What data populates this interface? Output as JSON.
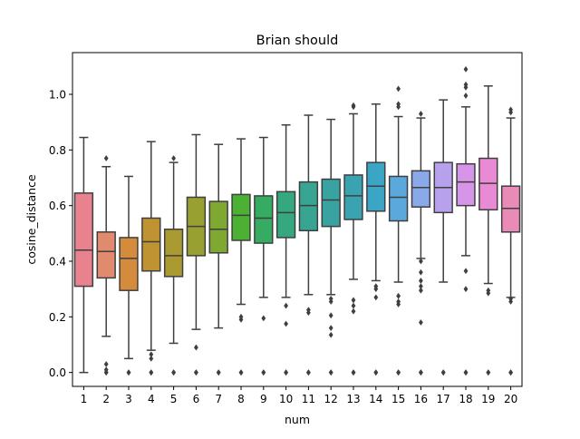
{
  "chart_data": {
    "type": "box",
    "title": "Brian should",
    "xlabel": "num",
    "ylabel": "cosine_distance",
    "ylim": [
      -0.05,
      1.15
    ],
    "yticks": [
      0.0,
      0.2,
      0.4,
      0.6,
      0.8,
      1.0
    ],
    "ytick_labels": [
      "0.0",
      "0.2",
      "0.4",
      "0.6",
      "0.8",
      "1.0"
    ],
    "grid": false,
    "legend": "none",
    "categories": [
      "1",
      "2",
      "3",
      "4",
      "5",
      "6",
      "7",
      "8",
      "9",
      "10",
      "11",
      "12",
      "13",
      "14",
      "15",
      "16",
      "17",
      "18",
      "19",
      "20"
    ],
    "boxes": [
      {
        "category": "1",
        "color": "#e8828f",
        "whisker_low": 0.0,
        "q1": 0.31,
        "median": 0.44,
        "q3": 0.645,
        "whisker_high": 0.845,
        "outliers": []
      },
      {
        "category": "2",
        "color": "#e08a6e",
        "whisker_low": 0.13,
        "q1": 0.34,
        "median": 0.435,
        "q3": 0.505,
        "whisker_high": 0.74,
        "outliers": [
          0.0,
          0.0,
          0.01,
          0.03,
          0.77
        ]
      },
      {
        "category": "3",
        "color": "#d58b3c",
        "whisker_low": 0.05,
        "q1": 0.295,
        "median": 0.41,
        "q3": 0.485,
        "whisker_high": 0.705,
        "outliers": [
          0.0,
          0.0
        ]
      },
      {
        "category": "4",
        "color": "#bf9232",
        "whisker_low": 0.08,
        "q1": 0.365,
        "median": 0.47,
        "q3": 0.555,
        "whisker_high": 0.83,
        "outliers": [
          0.0,
          0.0,
          0.05,
          0.065
        ]
      },
      {
        "category": "5",
        "color": "#ab9a32",
        "whisker_low": 0.105,
        "q1": 0.345,
        "median": 0.42,
        "q3": 0.515,
        "whisker_high": 0.755,
        "outliers": [
          0.0,
          0.0,
          0.77
        ]
      },
      {
        "category": "6",
        "color": "#98a032",
        "whisker_low": 0.155,
        "q1": 0.42,
        "median": 0.525,
        "q3": 0.63,
        "whisker_high": 0.855,
        "outliers": [
          0.0,
          0.0,
          0.09
        ]
      },
      {
        "category": "7",
        "color": "#7ea832",
        "whisker_low": 0.16,
        "q1": 0.43,
        "median": 0.515,
        "q3": 0.615,
        "whisker_high": 0.82,
        "outliers": [
          0.0,
          0.0
        ]
      },
      {
        "category": "8",
        "color": "#4cb033",
        "whisker_low": 0.245,
        "q1": 0.475,
        "median": 0.565,
        "q3": 0.64,
        "whisker_high": 0.84,
        "outliers": [
          0.0,
          0.0,
          0.19,
          0.2
        ]
      },
      {
        "category": "9",
        "color": "#35ac62",
        "whisker_low": 0.27,
        "q1": 0.465,
        "median": 0.555,
        "q3": 0.635,
        "whisker_high": 0.845,
        "outliers": [
          0.0,
          0.0,
          0.195
        ]
      },
      {
        "category": "10",
        "color": "#36a87f",
        "whisker_low": 0.27,
        "q1": 0.485,
        "median": 0.575,
        "q3": 0.65,
        "whisker_high": 0.89,
        "outliers": [
          0.0,
          0.0,
          0.175,
          0.24
        ]
      },
      {
        "category": "11",
        "color": "#37a591",
        "whisker_low": 0.28,
        "q1": 0.51,
        "median": 0.6,
        "q3": 0.685,
        "whisker_high": 0.925,
        "outliers": [
          0.0,
          0.0,
          0.215,
          0.225
        ]
      },
      {
        "category": "12",
        "color": "#38a3a0",
        "whisker_low": 0.28,
        "q1": 0.525,
        "median": 0.62,
        "q3": 0.695,
        "whisker_high": 0.91,
        "outliers": [
          0.0,
          0.0,
          0.135,
          0.16,
          0.205,
          0.255,
          0.265
        ]
      },
      {
        "category": "13",
        "color": "#39a3b1",
        "whisker_low": 0.335,
        "q1": 0.55,
        "median": 0.635,
        "q3": 0.71,
        "whisker_high": 0.93,
        "outliers": [
          0.0,
          0.0,
          0.22,
          0.24,
          0.26,
          0.955,
          0.96
        ]
      },
      {
        "category": "14",
        "color": "#3aa5c5",
        "whisker_low": 0.33,
        "q1": 0.58,
        "median": 0.67,
        "q3": 0.755,
        "whisker_high": 0.965,
        "outliers": [
          0.0,
          0.0,
          0.27,
          0.3,
          0.31
        ]
      },
      {
        "category": "15",
        "color": "#5ba9dc",
        "whisker_low": 0.325,
        "q1": 0.545,
        "median": 0.63,
        "q3": 0.705,
        "whisker_high": 0.92,
        "outliers": [
          0.0,
          0.0,
          0.245,
          0.255,
          0.275,
          0.955,
          0.965,
          1.02
        ]
      },
      {
        "category": "16",
        "color": "#8aa9e8",
        "whisker_low": 0.41,
        "q1": 0.595,
        "median": 0.665,
        "q3": 0.725,
        "whisker_high": 0.915,
        "outliers": [
          0.0,
          0.0,
          0.18,
          0.295,
          0.31,
          0.33,
          0.36,
          0.4,
          0.93
        ]
      },
      {
        "category": "17",
        "color": "#b8a1ec",
        "whisker_low": 0.325,
        "q1": 0.575,
        "median": 0.665,
        "q3": 0.755,
        "whisker_high": 0.98,
        "outliers": [
          0.0,
          0.0
        ]
      },
      {
        "category": "18",
        "color": "#d695e8",
        "whisker_low": 0.42,
        "q1": 0.6,
        "median": 0.685,
        "q3": 0.75,
        "whisker_high": 0.955,
        "outliers": [
          0.0,
          0.0,
          0.3,
          0.365,
          0.995,
          1.025,
          1.035,
          1.09
        ]
      },
      {
        "category": "19",
        "color": "#e88ad4",
        "whisker_low": 0.32,
        "q1": 0.585,
        "median": 0.68,
        "q3": 0.77,
        "whisker_high": 1.03,
        "outliers": [
          0.0,
          0.0,
          0.285,
          0.295
        ]
      },
      {
        "category": "20",
        "color": "#ea8ab7",
        "whisker_low": 0.27,
        "q1": 0.505,
        "median": 0.59,
        "q3": 0.67,
        "whisker_high": 0.915,
        "outliers": [
          0.0,
          0.0,
          0.255,
          0.265,
          0.935,
          0.945
        ]
      }
    ]
  }
}
